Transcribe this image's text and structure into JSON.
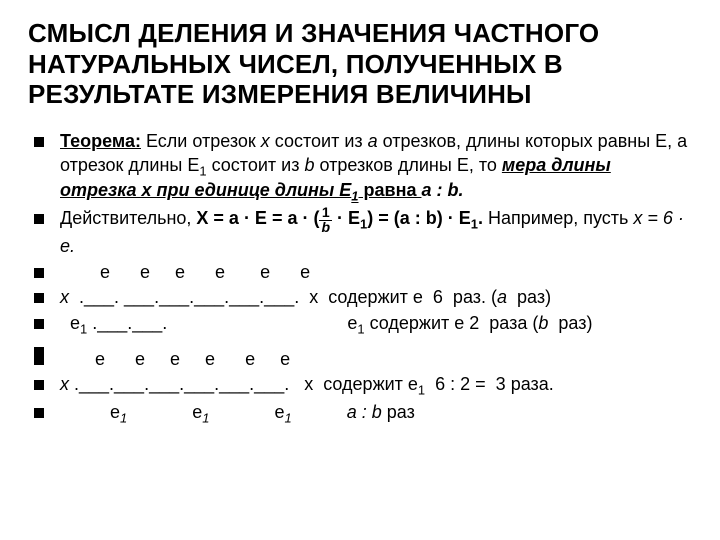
{
  "title": "СМЫСЛ  ДЕЛЕНИЯ И ЗНАЧЕНИЯ  ЧАСТНОГО НАТУРАЛЬНЫХ ЧИСЕЛ, ПОЛУЧЕННЫХ В РЕЗУЛЬТАТЕ ИЗМЕРЕНИЯ ВЕЛИЧИНЫ",
  "b1": {
    "label": "Теорема:",
    "t1": "  Если отрезок ",
    "x": "х",
    "t2": " состоит из ",
    "a": "а",
    "t3": " отрезков, длины которых равны Е, а отрезок длины Е",
    "sub1": "1",
    "t4": " состоит из ",
    "bb": "b",
    "t5": " отрезков длины  Е, то ",
    "emph": "мера длины отрезка х при единице длины Е",
    "sub2": "1",
    "t6": " равна ",
    "ab": "а : b."
  },
  "b2": {
    "t1": " Действительно,  ",
    "eq1": "Х = а · Е = а · (",
    "num": "1",
    "den": "b",
    "eq2": " · Е",
    "sub1": "1",
    "eq3": ") = (а : b) · Е",
    "sub2": "1",
    "eq4": ".",
    "t2": "  Например, пусть ",
    "x6e": "х = 6 · е."
  },
  "b3": "        е      е     е      е       е      е",
  "b4": {
    "x": "х",
    "seg": "  .___. ___.___.___.___.___.  ",
    "tail": "х  содержит е  6  раз. (",
    "a": "a",
    "tail2": "  раз)"
  },
  "b5": {
    "lead": "  е",
    "sub": "1",
    "seg": " .___.___.                                    ",
    "tail": "е",
    "sub2": "1",
    "t2": " содержит е 2  раза (",
    "bb": "b",
    "t3": "  раз)"
  },
  "b6": "       е      е     е     е      е     е",
  "b7": {
    "x": "х",
    "seg": " .___.___.___.___.___.___.   ",
    "tail": "х  содержит е",
    "sub": "1",
    "t2": "  6 : 2 =  3 раза."
  },
  "b8": {
    "lead": "          е",
    "sub1": "1",
    "gap1": "             е",
    "sub2": "1",
    "gap2": "             е",
    "sub3": "1",
    "gap3": "           ",
    "ab": "a : b",
    "t": " раз"
  }
}
